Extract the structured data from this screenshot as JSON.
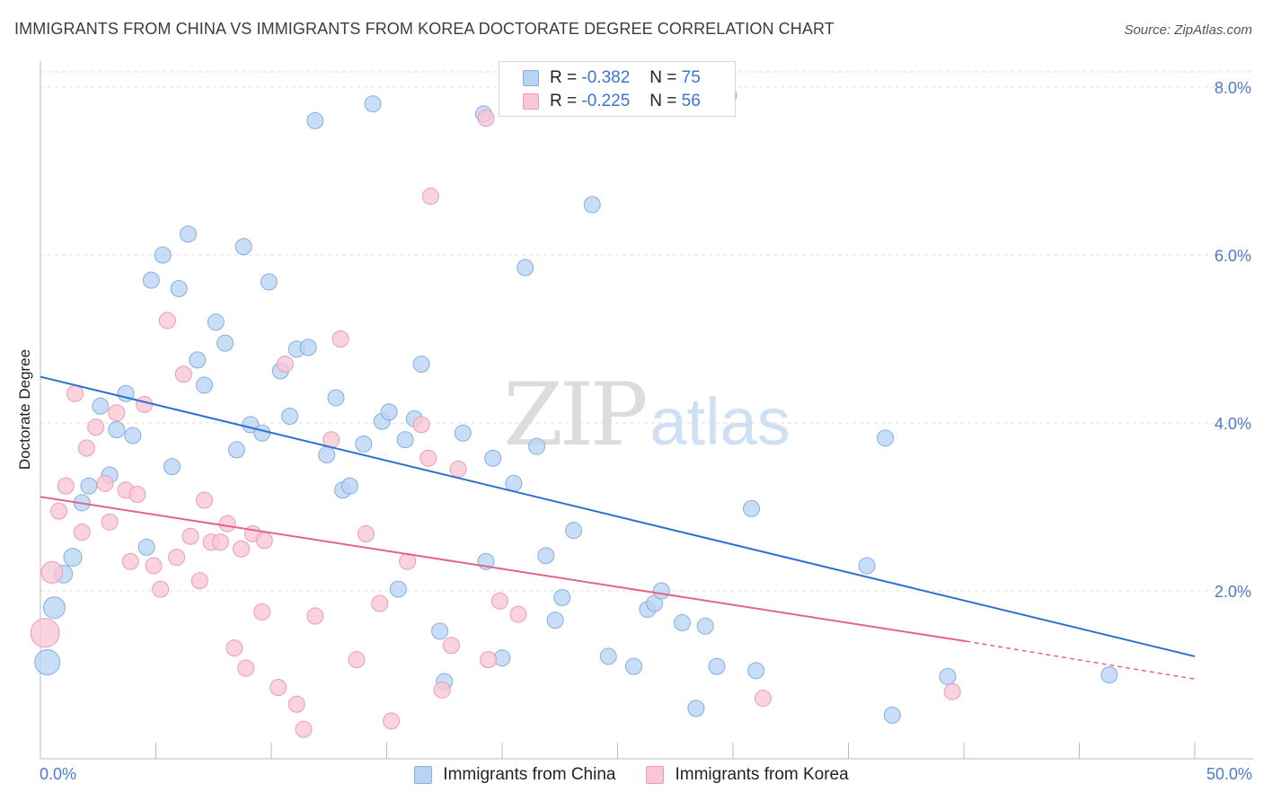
{
  "title": "IMMIGRANTS FROM CHINA VS IMMIGRANTS FROM KOREA DOCTORATE DEGREE CORRELATION CHART",
  "source": "Source: ZipAtlas.com",
  "watermark": {
    "zip": "ZIP",
    "atlas": "atlas"
  },
  "legend_top": [
    {
      "r_label": "R = ",
      "r_value": "-0.382",
      "n_label": "N = ",
      "n_value": "75"
    },
    {
      "r_label": "R = ",
      "r_value": "-0.225",
      "n_label": "N = ",
      "n_value": "56"
    }
  ],
  "colors": {
    "china_fill": "#b8d3f4",
    "china_stroke": "#86aee0",
    "china_line": "#2f6fd0",
    "korea_fill": "#f8c6d6",
    "korea_stroke": "#ee9ab6",
    "korea_line": "#e2648f",
    "axis_text": "#4a7cc9",
    "grid": "#dddddd"
  },
  "chart_data": {
    "type": "scatter",
    "title": "IMMIGRANTS FROM CHINA VS IMMIGRANTS FROM KOREA DOCTORATE DEGREE CORRELATION CHART",
    "xlabel": "",
    "ylabel": "Doctorate Degree",
    "xlim": [
      0,
      50
    ],
    "ylim": [
      0,
      8.3
    ],
    "x_tick_labels": [
      "0.0%",
      "50.0%"
    ],
    "y_ticks": [
      2,
      4,
      6,
      8
    ],
    "y_tick_labels": [
      "2.0%",
      "4.0%",
      "6.0%",
      "8.0%"
    ],
    "grid": true,
    "legend_position": "bottom",
    "series": [
      {
        "name": "Immigrants from China",
        "r": -0.382,
        "n": 75,
        "trend": {
          "x0": 0,
          "y0": 4.55,
          "x1": 50,
          "y1": 1.22
        },
        "points": [
          [
            0.3,
            1.15,
            14
          ],
          [
            0.6,
            1.8,
            12
          ],
          [
            1.0,
            2.2,
            10
          ],
          [
            1.4,
            2.4,
            10
          ],
          [
            1.8,
            3.05,
            9
          ],
          [
            2.1,
            3.25,
            9
          ],
          [
            2.6,
            4.2,
            9
          ],
          [
            3.0,
            3.38,
            9
          ],
          [
            3.3,
            3.92,
            9
          ],
          [
            3.7,
            4.35,
            9
          ],
          [
            4.0,
            3.85,
            9
          ],
          [
            4.6,
            2.52,
            9
          ],
          [
            4.8,
            5.7,
            9
          ],
          [
            5.3,
            6.0,
            9
          ],
          [
            5.7,
            3.48,
            9
          ],
          [
            6.0,
            5.6,
            9
          ],
          [
            6.4,
            6.25,
            9
          ],
          [
            6.8,
            4.75,
            9
          ],
          [
            7.1,
            4.45,
            9
          ],
          [
            7.6,
            5.2,
            9
          ],
          [
            8.0,
            4.95,
            9
          ],
          [
            8.5,
            3.68,
            9
          ],
          [
            8.8,
            6.1,
            9
          ],
          [
            9.1,
            3.98,
            9
          ],
          [
            9.6,
            3.88,
            9
          ],
          [
            9.9,
            5.68,
            9
          ],
          [
            10.4,
            4.62,
            9
          ],
          [
            10.8,
            4.08,
            9
          ],
          [
            11.1,
            4.88,
            9
          ],
          [
            11.6,
            4.9,
            9
          ],
          [
            11.9,
            7.6,
            9
          ],
          [
            12.4,
            3.62,
            9
          ],
          [
            12.8,
            4.3,
            9
          ],
          [
            13.1,
            3.2,
            9
          ],
          [
            13.4,
            3.25,
            9
          ],
          [
            14.0,
            3.75,
            9
          ],
          [
            14.4,
            7.8,
            9
          ],
          [
            14.8,
            4.02,
            9
          ],
          [
            15.1,
            4.13,
            9
          ],
          [
            15.5,
            2.02,
            9
          ],
          [
            15.8,
            3.8,
            9
          ],
          [
            16.2,
            4.05,
            9
          ],
          [
            16.5,
            4.7,
            9
          ],
          [
            17.3,
            1.52,
            9
          ],
          [
            17.5,
            0.92,
            9
          ],
          [
            18.3,
            3.88,
            9
          ],
          [
            19.2,
            7.68,
            9
          ],
          [
            19.3,
            2.35,
            9
          ],
          [
            19.6,
            3.58,
            9
          ],
          [
            20.0,
            1.2,
            9
          ],
          [
            20.5,
            3.28,
            9
          ],
          [
            21.0,
            5.85,
            9
          ],
          [
            21.5,
            3.72,
            9
          ],
          [
            21.9,
            2.42,
            9
          ],
          [
            22.3,
            1.65,
            9
          ],
          [
            22.6,
            1.92,
            9
          ],
          [
            23.1,
            2.72,
            9
          ],
          [
            23.9,
            6.6,
            9
          ],
          [
            24.6,
            1.22,
            9
          ],
          [
            25.7,
            1.1,
            9
          ],
          [
            26.3,
            1.78,
            9
          ],
          [
            26.6,
            1.85,
            9
          ],
          [
            26.9,
            2.0,
            9
          ],
          [
            27.8,
            1.62,
            9
          ],
          [
            28.4,
            0.6,
            9
          ],
          [
            28.8,
            1.58,
            9
          ],
          [
            29.3,
            1.1,
            9
          ],
          [
            29.8,
            7.9,
            9
          ],
          [
            30.8,
            2.98,
            9
          ],
          [
            31.0,
            1.05,
            9
          ],
          [
            35.8,
            2.3,
            9
          ],
          [
            36.6,
            3.82,
            9
          ],
          [
            36.9,
            0.52,
            9
          ],
          [
            39.3,
            0.98,
            9
          ],
          [
            46.3,
            1.0,
            9
          ]
        ]
      },
      {
        "name": "Immigrants from Korea",
        "r": -0.225,
        "n": 56,
        "trend": {
          "x0": 0,
          "y0": 3.12,
          "x1": 40.1,
          "y1": 1.4
        },
        "trend_dashed": {
          "x0": 40.1,
          "y0": 1.4,
          "x1": 50,
          "y1": 0.95
        },
        "points": [
          [
            0.2,
            1.5,
            16
          ],
          [
            0.5,
            2.22,
            12
          ],
          [
            0.8,
            2.95,
            9
          ],
          [
            1.1,
            3.25,
            9
          ],
          [
            1.5,
            4.35,
            9
          ],
          [
            1.8,
            2.7,
            9
          ],
          [
            2.0,
            3.7,
            9
          ],
          [
            2.4,
            3.95,
            9
          ],
          [
            2.8,
            3.28,
            9
          ],
          [
            3.0,
            2.82,
            9
          ],
          [
            3.3,
            4.12,
            9
          ],
          [
            3.7,
            3.2,
            9
          ],
          [
            3.9,
            2.35,
            9
          ],
          [
            4.2,
            3.15,
            9
          ],
          [
            4.5,
            4.22,
            9
          ],
          [
            4.9,
            2.3,
            9
          ],
          [
            5.2,
            2.02,
            9
          ],
          [
            5.5,
            5.22,
            9
          ],
          [
            5.9,
            2.4,
            9
          ],
          [
            6.2,
            4.58,
            9
          ],
          [
            6.5,
            2.65,
            9
          ],
          [
            6.9,
            2.12,
            9
          ],
          [
            7.1,
            3.08,
            9
          ],
          [
            7.4,
            2.58,
            9
          ],
          [
            7.8,
            2.58,
            9
          ],
          [
            8.1,
            2.8,
            9
          ],
          [
            8.4,
            1.32,
            9
          ],
          [
            8.7,
            2.5,
            9
          ],
          [
            8.9,
            1.08,
            9
          ],
          [
            9.2,
            2.68,
            9
          ],
          [
            9.6,
            1.75,
            9
          ],
          [
            9.7,
            2.6,
            9
          ],
          [
            10.3,
            0.85,
            9
          ],
          [
            10.6,
            4.7,
            9
          ],
          [
            11.1,
            0.65,
            9
          ],
          [
            11.4,
            0.35,
            9
          ],
          [
            11.9,
            1.7,
            9
          ],
          [
            12.6,
            3.8,
            9
          ],
          [
            13.0,
            5.0,
            9
          ],
          [
            13.7,
            1.18,
            9
          ],
          [
            14.1,
            2.68,
            9
          ],
          [
            14.7,
            1.85,
            9
          ],
          [
            15.2,
            0.45,
            9
          ],
          [
            15.9,
            2.35,
            9
          ],
          [
            16.5,
            3.98,
            9
          ],
          [
            16.8,
            3.58,
            9
          ],
          [
            16.9,
            6.7,
            9
          ],
          [
            17.4,
            0.82,
            9
          ],
          [
            17.8,
            1.35,
            9
          ],
          [
            18.1,
            3.45,
            9
          ],
          [
            19.3,
            7.63,
            9
          ],
          [
            19.4,
            1.18,
            9
          ],
          [
            19.9,
            1.88,
            9
          ],
          [
            20.7,
            1.72,
            9
          ],
          [
            31.3,
            0.72,
            9
          ],
          [
            39.5,
            0.8,
            9
          ]
        ]
      }
    ]
  }
}
